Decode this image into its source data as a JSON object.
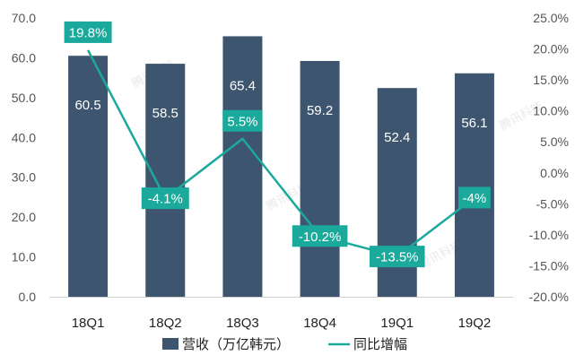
{
  "chart_data": {
    "type": "bar+line",
    "categories": [
      "18Q1",
      "18Q2",
      "18Q3",
      "18Q4",
      "19Q1",
      "19Q2"
    ],
    "series": [
      {
        "name": "营收（万亿韩元）",
        "type": "bar",
        "axis": "left",
        "values": [
          60.5,
          58.5,
          65.4,
          59.2,
          52.4,
          56.1
        ],
        "labels": [
          "60.5",
          "58.5",
          "65.4",
          "59.2",
          "52.4",
          "56.1"
        ],
        "color": "#3E5570"
      },
      {
        "name": "同比增幅",
        "type": "line",
        "axis": "right",
        "values": [
          19.8,
          -4.1,
          5.5,
          -10.2,
          -13.5,
          -4.0
        ],
        "labels": [
          "19.8%",
          "-4.1%",
          "5.5%",
          "-10.2%",
          "-13.5%",
          "-4%"
        ],
        "color": "#1BA99C"
      }
    ],
    "y_left": {
      "min": 0,
      "max": 70,
      "ticks": [
        0,
        10,
        20,
        30,
        40,
        50,
        60,
        70
      ],
      "tick_labels": [
        "0.0",
        "10.0",
        "20.0",
        "30.0",
        "40.0",
        "50.0",
        "60.0",
        "70.0"
      ]
    },
    "y_right": {
      "min": -20,
      "max": 25,
      "ticks": [
        -20,
        -15,
        -10,
        -5,
        0,
        5,
        10,
        15,
        20,
        25
      ],
      "tick_labels": [
        "-20.0%",
        "-15.0%",
        "-10.0%",
        "-5.0%",
        "0.0%",
        "5.0%",
        "10.0%",
        "15.0%",
        "20.0%",
        "25.0%"
      ]
    },
    "title": "",
    "xlabel": "",
    "ylabel": "",
    "grid": false,
    "legend_position": "bottom",
    "watermark": "腾讯科技"
  }
}
